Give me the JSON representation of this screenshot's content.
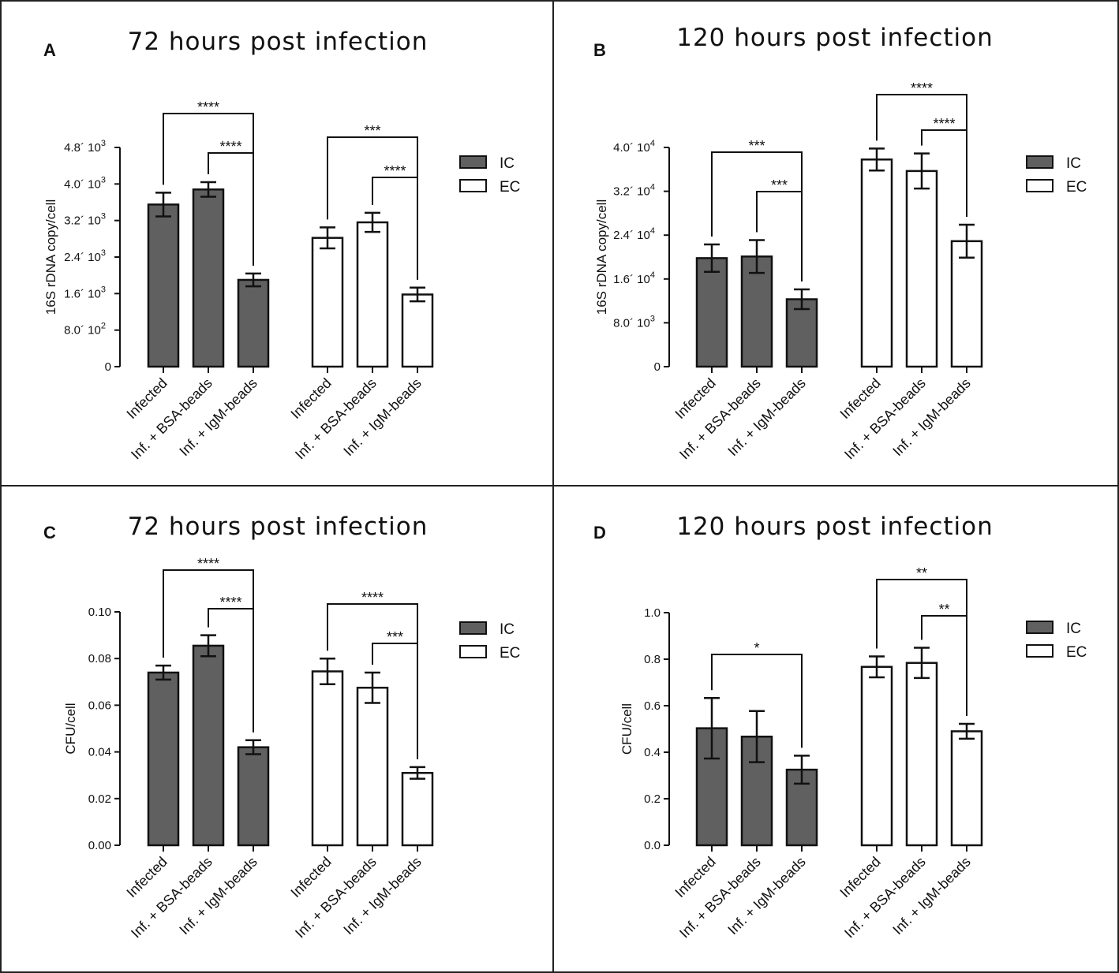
{
  "colors": {
    "ic": "#606060",
    "ec": "#ffffff",
    "stroke": "#111111",
    "frame": "#222222"
  },
  "chart_data": [
    {
      "letter": "A",
      "type": "bar",
      "title": "72 hours post infection",
      "ylabel": "16S rDNA copy/cell",
      "ylim": [
        0,
        4800
      ],
      "ticks": [
        {
          "value": 0,
          "base": "0",
          "exp": ""
        },
        {
          "value": 800,
          "base": "8.0´ 10",
          "exp": "2"
        },
        {
          "value": 1600,
          "base": "1.6´ 10",
          "exp": "3"
        },
        {
          "value": 2400,
          "base": "2.4´ 10",
          "exp": "3"
        },
        {
          "value": 3200,
          "base": "3.2´ 10",
          "exp": "3"
        },
        {
          "value": 4000,
          "base": "4.0´ 10",
          "exp": "3"
        },
        {
          "value": 4800,
          "base": "4.8´ 10",
          "exp": "3"
        }
      ],
      "categories": [
        "Infected",
        "Inf. + BSA-beads",
        "Inf. + IgM-beads"
      ],
      "series": [
        {
          "name": "IC",
          "values": [
            3550,
            3880,
            1900
          ],
          "errors": [
            260,
            160,
            140
          ]
        },
        {
          "name": "EC",
          "values": [
            2820,
            3160,
            1580
          ],
          "errors": [
            230,
            210,
            150
          ]
        }
      ],
      "significance": [
        {
          "series": 0,
          "from": 0,
          "to": 2,
          "label": "****"
        },
        {
          "series": 0,
          "from": 1,
          "to": 2,
          "label": "****"
        },
        {
          "series": 1,
          "from": 0,
          "to": 2,
          "label": "***"
        },
        {
          "series": 1,
          "from": 1,
          "to": 2,
          "label": "****"
        }
      ]
    },
    {
      "letter": "B",
      "type": "bar",
      "title": "120 hours post infection",
      "ylabel": "16S rDNA copy/cell",
      "ylim": [
        0,
        40000
      ],
      "ticks": [
        {
          "value": 0,
          "base": "0",
          "exp": ""
        },
        {
          "value": 8000,
          "base": "8.0´ 10",
          "exp": "3"
        },
        {
          "value": 16000,
          "base": "1.6´ 10",
          "exp": "4"
        },
        {
          "value": 24000,
          "base": "2.4´ 10",
          "exp": "4"
        },
        {
          "value": 32000,
          "base": "3.2´ 10",
          "exp": "4"
        },
        {
          "value": 40000,
          "base": "4.0´ 10",
          "exp": "4"
        }
      ],
      "categories": [
        "Infected",
        "Inf. + BSA-beads",
        "Inf. + IgM-beads"
      ],
      "series": [
        {
          "name": "IC",
          "values": [
            19800,
            20100,
            12300
          ],
          "errors": [
            2500,
            3000,
            1800
          ]
        },
        {
          "name": "EC",
          "values": [
            37800,
            35700,
            22900
          ],
          "errors": [
            2000,
            3200,
            3000
          ]
        }
      ],
      "significance": [
        {
          "series": 0,
          "from": 0,
          "to": 2,
          "label": "***"
        },
        {
          "series": 0,
          "from": 1,
          "to": 2,
          "label": "***"
        },
        {
          "series": 1,
          "from": 0,
          "to": 2,
          "label": "****"
        },
        {
          "series": 1,
          "from": 1,
          "to": 2,
          "label": "****"
        }
      ]
    },
    {
      "letter": "C",
      "type": "bar",
      "title": "72 hours post infection",
      "ylabel": "CFU/cell",
      "ylim": [
        0,
        0.1
      ],
      "ticks": [
        {
          "value": 0,
          "base": "0.00",
          "exp": ""
        },
        {
          "value": 0.02,
          "base": "0.02",
          "exp": ""
        },
        {
          "value": 0.04,
          "base": "0.04",
          "exp": ""
        },
        {
          "value": 0.06,
          "base": "0.06",
          "exp": ""
        },
        {
          "value": 0.08,
          "base": "0.08",
          "exp": ""
        },
        {
          "value": 0.1,
          "base": "0.10",
          "exp": ""
        }
      ],
      "categories": [
        "Infected",
        "Inf. + BSA-beads",
        "Inf. + IgM-beads"
      ],
      "series": [
        {
          "name": "IC",
          "values": [
            0.074,
            0.0855,
            0.042
          ],
          "errors": [
            0.003,
            0.0045,
            0.003
          ]
        },
        {
          "name": "EC",
          "values": [
            0.0745,
            0.0675,
            0.031
          ],
          "errors": [
            0.0055,
            0.0065,
            0.0025
          ]
        }
      ],
      "significance": [
        {
          "series": 0,
          "from": 0,
          "to": 2,
          "label": "****"
        },
        {
          "series": 0,
          "from": 1,
          "to": 2,
          "label": "****"
        },
        {
          "series": 1,
          "from": 0,
          "to": 2,
          "label": "****"
        },
        {
          "series": 1,
          "from": 1,
          "to": 2,
          "label": "***"
        }
      ]
    },
    {
      "letter": "D",
      "type": "bar",
      "title": "120 hours post infection",
      "ylabel": "CFU/cell",
      "ylim": [
        0,
        1.0
      ],
      "ticks": [
        {
          "value": 0,
          "base": "0.0",
          "exp": ""
        },
        {
          "value": 0.2,
          "base": "0.2",
          "exp": ""
        },
        {
          "value": 0.4,
          "base": "0.4",
          "exp": ""
        },
        {
          "value": 0.6,
          "base": "0.6",
          "exp": ""
        },
        {
          "value": 0.8,
          "base": "0.8",
          "exp": ""
        },
        {
          "value": 1.0,
          "base": "1.0",
          "exp": ""
        }
      ],
      "categories": [
        "Infected",
        "Inf. + BSA-beads",
        "Inf. + IgM-beads"
      ],
      "series": [
        {
          "name": "IC",
          "values": [
            0.503,
            0.467,
            0.325
          ],
          "errors": [
            0.13,
            0.11,
            0.06
          ]
        },
        {
          "name": "EC",
          "values": [
            0.767,
            0.784,
            0.49
          ],
          "errors": [
            0.045,
            0.065,
            0.032
          ]
        }
      ],
      "significance": [
        {
          "series": 0,
          "from": 0,
          "to": 2,
          "label": "*"
        },
        {
          "series": 1,
          "from": 0,
          "to": 2,
          "label": "**"
        },
        {
          "series": 1,
          "from": 1,
          "to": 2,
          "label": "**"
        }
      ]
    }
  ]
}
